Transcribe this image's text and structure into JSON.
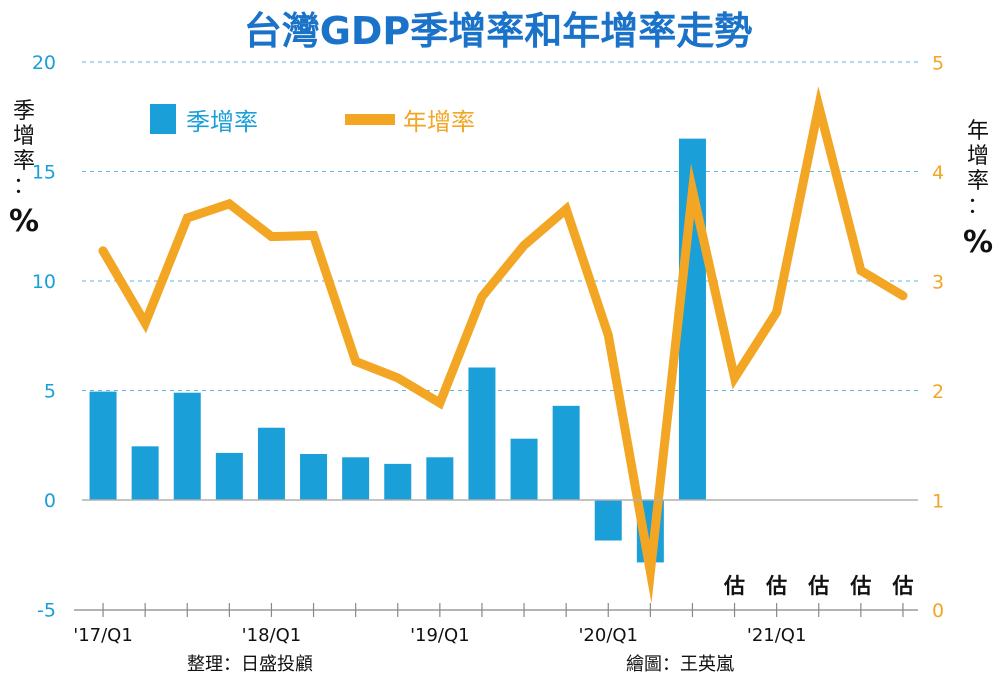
{
  "chart_data": {
    "type": "bar+line",
    "title": "台灣GDP季增率和年增率走勢",
    "x_labels": [
      "'17/Q1",
      "'18/Q1",
      "'19/Q1",
      "'20/Q1",
      "'21/Q1"
    ],
    "series": [
      {
        "name": "季增率",
        "type": "bar",
        "axis": "left",
        "color": "#1a9fd8",
        "values": [
          4.95,
          2.45,
          4.9,
          2.15,
          3.3,
          2.1,
          1.95,
          1.65,
          1.95,
          6.05,
          2.8,
          4.3,
          -1.85,
          -2.85,
          16.5
        ]
      },
      {
        "name": "年增率",
        "type": "line",
        "axis": "right",
        "color": "#f2a624",
        "values": [
          3.28,
          2.62,
          3.58,
          3.71,
          3.41,
          3.42,
          2.27,
          2.12,
          1.89,
          2.86,
          3.33,
          3.66,
          2.51,
          0.35,
          3.83,
          2.12,
          2.72,
          4.6,
          3.1,
          2.87
        ]
      }
    ],
    "left_axis": {
      "label": [
        "季",
        "增",
        "率",
        "：",
        "%"
      ],
      "ylim": [
        -5,
        20
      ],
      "ticks": [
        -5,
        0,
        5,
        10,
        15,
        20
      ]
    },
    "right_axis": {
      "label": [
        "年",
        "增",
        "率",
        "：",
        "%"
      ],
      "ylim": [
        0,
        5
      ],
      "ticks": [
        0,
        1,
        2,
        3,
        4,
        5
      ]
    },
    "estimate_marker": "估",
    "estimate_indices": [
      15,
      16,
      17,
      18,
      19
    ],
    "grid": true,
    "legend_position": "top-left"
  },
  "credits": {
    "source": "整理：日盛投顧",
    "artist": "繪圖：王英嵐"
  }
}
